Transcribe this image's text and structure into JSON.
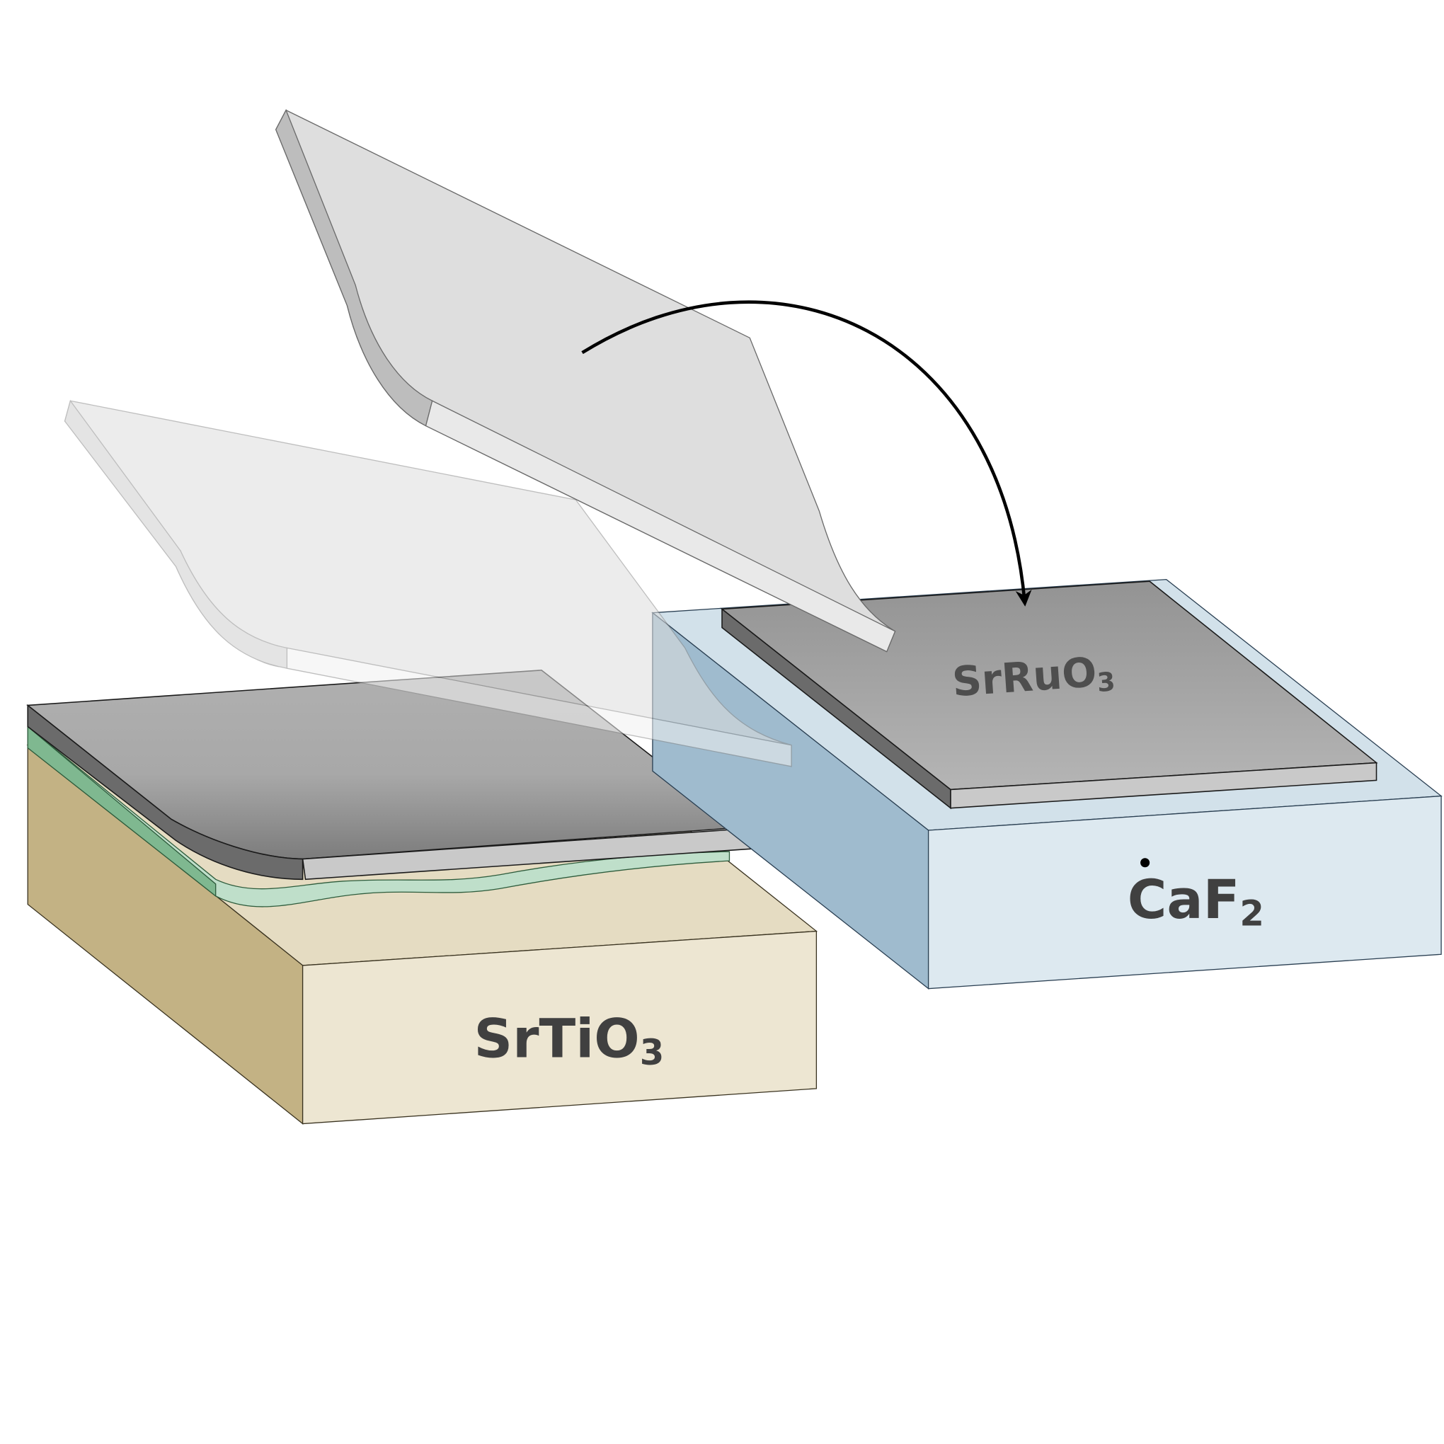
{
  "labels": {
    "srtio3": {
      "base": "SrTiO",
      "sub": "3"
    },
    "srruo3": {
      "base": "SrRuO",
      "sub": "3"
    },
    "caf2": {
      "base": "CaF",
      "sub": "2"
    }
  },
  "colors": {
    "srtio3_front": "#ede6d2",
    "srtio3_top": "#e5dcc2",
    "srtio3_side": "#c3b284",
    "caf2_front": "#dde9f0",
    "caf2_top": "#d2e1ea",
    "caf2_side": "#9fbbce",
    "film_dark": "#6b6b6b",
    "film_light": "#c9c9c9",
    "sacrificial_green": "#7fb890",
    "sacrificial_light": "#bfdfca",
    "support_sheet": "#dedede",
    "arrow": "#000000"
  }
}
